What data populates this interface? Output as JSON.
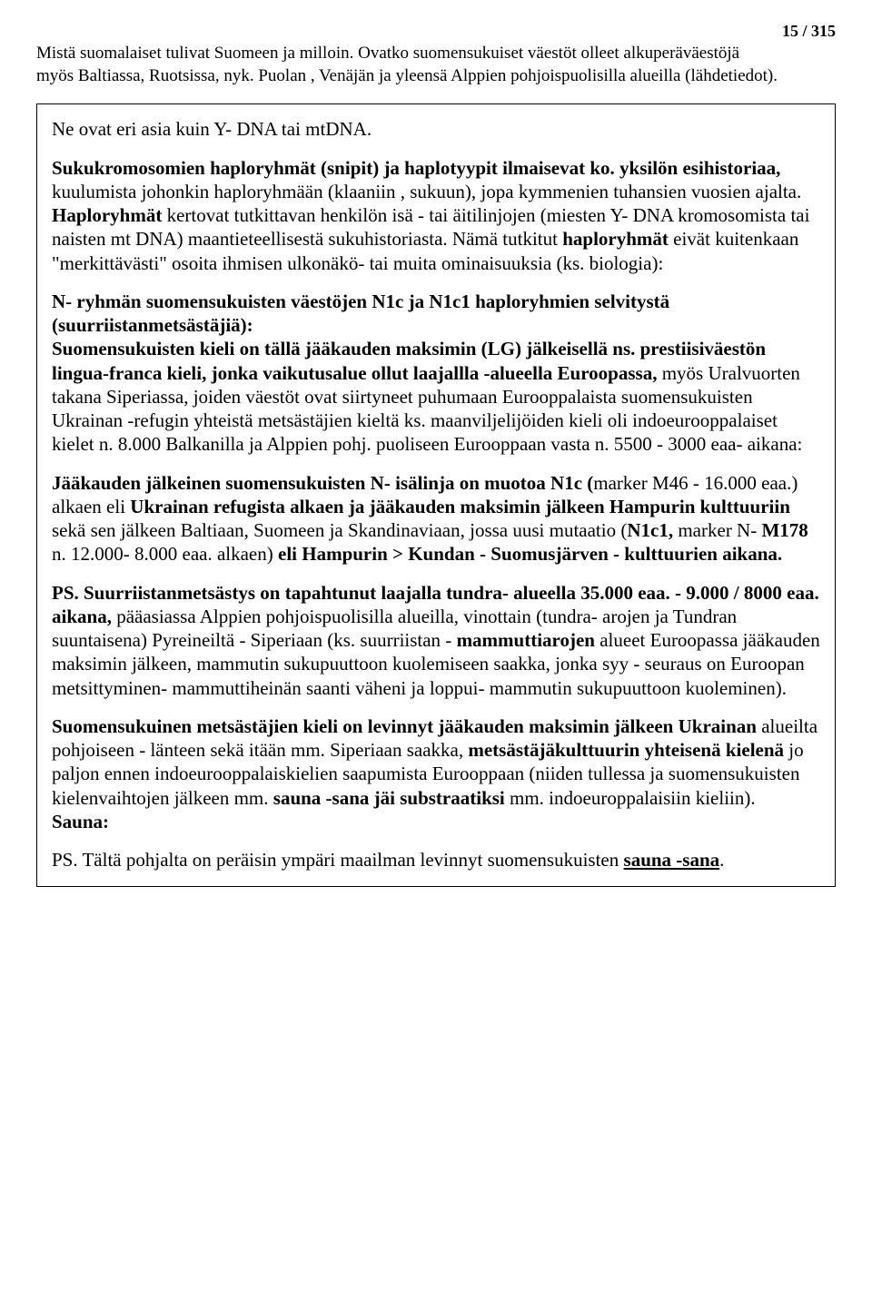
{
  "pageNumber": "15 / 315",
  "headerLine1": "Mistä suomalaiset  tulivat Suomeen ja milloin. Ovatko suomensukuiset väestöt olleet alkuperäväestöjä",
  "headerLine2": "myös Baltiassa, Ruotsissa,  nyk. Puolan , Venäjän ja yleensä Alppien pohjoispuolisilla alueilla (lähdetiedot).",
  "p1_a": "Ne ovat eri asia kuin Y- DNA tai mtDNA.",
  "p2_b1": "Sukukromosomien haploryhmät (snipit) ja haplotyypit  ilmaisevat ko. yksilön esihistoriaa,",
  "p2_a": " kuulumista johonkin haploryhmään (klaaniin , sukuun), jopa kymmenien tuhansien vuosien ajalta. ",
  "p2_b2": "Haploryhmät",
  "p2_c": " kertovat tutkittavan henkilön isä - tai äitilinjojen  (miesten Y- DNA kromosomista tai naisten mt DNA) maantieteellisestä sukuhistoriasta. Nämä tutkitut ",
  "p2_b3": "haploryhmät",
  "p2_d": " eivät kuitenkaan \"merkittävästi\" osoita ihmisen ulkonäkö- tai muita ominaisuuksia (ks. biologia):",
  "p3_b1": "N- ryhmän suomensukuisten väestöjen N1c ja N1c1 haploryhmien selvitystä (suurriistanmetsästäjiä):",
  "p3_br": "",
  "p3_b2": "Suomensukuisten kieli on tällä jääkauden maksimin (LG) jälkeisellä ns. prestiisiväestön lingua-franca kieli, jonka vaikutusalue ollut laajallla -alueella Euroopassa,",
  "p3_a": "  myös Uralvuorten takana Siperiassa, joiden väestöt ovat siirtyneet puhumaan Eurooppalaista suomensukuisten Ukrainan -refugin yhteistä metsästäjien kieltä ks. maanviljelijöiden kieli oli indoeurooppalaiset kielet n. 8.000 Balkanilla ja Alppien pohj. puoliseen Eurooppaan vasta n. 5500 - 3000 eaa- aikana:",
  "p4_b1": "Jääkauden jälkeinen suomensukuisten N- isälinja on muotoa N1c  (",
  "p4_a": "marker M46 - 16.000 eaa.) alkaen eli ",
  "p4_b2": "Ukrainan refugista alkaen ja jääkauden maksimin jälkeen Hampurin kulttuuriin",
  "p4_c": " sekä sen jälkeen Baltiaan, Suomeen ja Skandinaviaan, jossa uusi mutaatio (",
  "p4_b3": "N1c1,",
  "p4_d": " marker N- ",
  "p4_b4": "M178",
  "p4_e": "   n. 12.000- 8.000 eaa. alkaen) ",
  "p4_b5": "eli Hampurin > Kundan - Suomusjärven - kulttuurien aikana.",
  "p5_b1": "PS. Suurriistanmetsästys on tapahtunut laajalla tundra- alueella 35.000 eaa. - 9.000 / 8000 eaa. aikana,",
  "p5_a": " pääasiassa Alppien pohjoispuolisilla alueilla, vinottain (tundra- arojen ja Tundran suuntaisena) Pyreineiltä - Siperiaan (ks. suurriistan - ",
  "p5_b2": "mammuttiarojen",
  "p5_c": " alueet Euroopassa jääkauden maksimin jälkeen, mammutin sukupuuttoon kuolemiseen saakka, jonka syy - seuraus on Euroopan metsittyminen- mammuttiheinän saanti väheni ja loppui- mammutin sukupuuttoon kuoleminen).",
  "p6_b1": "Suomensukuinen metsästäjien kieli on levinnyt jääkauden maksimin jälkeen Ukrainan",
  "p6_a": " alueilta pohjoiseen - länteen sekä itään mm. Siperiaan saakka, ",
  "p6_b2": "metsästäjäkulttuurin yhteisenä kielenä",
  "p6_c": " jo paljon ennen indoeurooppalaiskielien saapumista Eurooppaan (niiden tullessa ja suomensukuisten kielenvaihtojen jälkeen mm. ",
  "p6_b3": "sauna -sana jäi substraatiksi",
  "p6_d": " mm. indoeuroppalaisiin kieliin).",
  "p6_b4": "Sauna:",
  "p7_a": "PS. Tältä pohjalta on peräisin ympäri maailman levinnyt suomensukuisten ",
  "p7_bu": "sauna -sana",
  "p7_dot": "."
}
